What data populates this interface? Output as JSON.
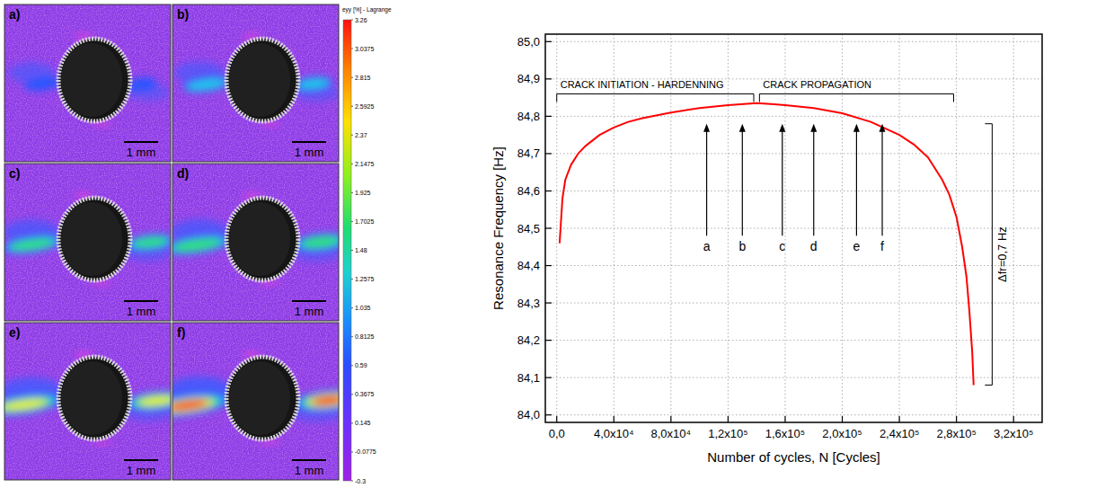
{
  "strain_maps": {
    "panels": [
      {
        "label": "a)",
        "scale_bar": "1 mm"
      },
      {
        "label": "b)",
        "scale_bar": "1 mm"
      },
      {
        "label": "c)",
        "scale_bar": "1 mm"
      },
      {
        "label": "d)",
        "scale_bar": "1 mm"
      },
      {
        "label": "e)",
        "scale_bar": "1 mm"
      },
      {
        "label": "f)",
        "scale_bar": "1 mm"
      }
    ],
    "colorbar": {
      "title": "eyy [%] - Lagrange",
      "range": [
        -0.3,
        3.26
      ],
      "ticks": [
        3.26,
        3.0375,
        2.815,
        2.5925,
        2.37,
        2.1475,
        1.925,
        1.7025,
        1.48,
        1.2575,
        1.035,
        0.8125,
        0.59,
        0.3675,
        0.145,
        -0.0775,
        -0.3
      ]
    }
  },
  "chart_data": {
    "type": "line",
    "x_label": "Number of cycles, N [Cycles]",
    "y_label": "Resonance Frequency [Hz]",
    "x": [
      2000,
      4000,
      6000,
      10000,
      15000,
      20000,
      30000,
      40000,
      50000,
      60000,
      80000,
      100000,
      120000,
      140000,
      150000,
      160000,
      180000,
      200000,
      220000,
      240000,
      250000,
      260000,
      270000,
      275000,
      280000,
      284000,
      287000,
      289000,
      291000,
      292000
    ],
    "values": [
      84.46,
      84.58,
      84.63,
      84.67,
      84.7,
      84.72,
      84.75,
      84.77,
      84.785,
      84.795,
      84.81,
      84.822,
      84.83,
      84.835,
      84.833,
      84.83,
      84.822,
      84.808,
      84.785,
      84.75,
      84.725,
      84.69,
      84.63,
      84.59,
      84.53,
      84.45,
      84.37,
      84.28,
      84.17,
      84.08
    ],
    "color": "#ff0000",
    "xlim": [
      -8000,
      340000
    ],
    "ylim": [
      83.98,
      85.02
    ],
    "xticks": [
      {
        "value": 0,
        "label": "0,0"
      },
      {
        "value": 40000,
        "label": "4,0x10⁴"
      },
      {
        "value": 80000,
        "label": "8,0x10⁴"
      },
      {
        "value": 120000,
        "label": "1,2x10⁵"
      },
      {
        "value": 160000,
        "label": "1,6x10⁵"
      },
      {
        "value": 200000,
        "label": "2,0x10⁵"
      },
      {
        "value": 240000,
        "label": "2,4x10⁵"
      },
      {
        "value": 280000,
        "label": "2,8x10⁵"
      },
      {
        "value": 320000,
        "label": "3,2x10⁵"
      }
    ],
    "yticks": [
      {
        "value": 84.0,
        "label": "84,0"
      },
      {
        "value": 84.1,
        "label": "84,1"
      },
      {
        "value": 84.2,
        "label": "84,2"
      },
      {
        "value": 84.3,
        "label": "84,3"
      },
      {
        "value": 84.4,
        "label": "84,4"
      },
      {
        "value": 84.5,
        "label": "84,5"
      },
      {
        "value": 84.6,
        "label": "84,6"
      },
      {
        "value": 84.7,
        "label": "84,7"
      },
      {
        "value": 84.8,
        "label": "84,8"
      },
      {
        "value": 84.9,
        "label": "84,9"
      },
      {
        "value": 85.0,
        "label": "85,0"
      }
    ],
    "grid": true,
    "brackets": [
      {
        "text": "CRACK INITIATION - HARDENNING",
        "x_start": 0,
        "x_end": 138000,
        "y": 84.86
      },
      {
        "text": "CRACK PROPAGATION",
        "x_start": 142000,
        "x_end": 278000,
        "y": 84.86
      }
    ],
    "arrows": [
      {
        "text": "a",
        "x": 105000,
        "y_start": 84.48,
        "y_end": 84.78
      },
      {
        "text": "b",
        "x": 130000,
        "y_start": 84.48,
        "y_end": 84.78
      },
      {
        "text": "c",
        "x": 158000,
        "y_start": 84.48,
        "y_end": 84.78
      },
      {
        "text": "d",
        "x": 180000,
        "y_start": 84.48,
        "y_end": 84.78
      },
      {
        "text": "e",
        "x": 210000,
        "y_start": 84.48,
        "y_end": 84.78
      },
      {
        "text": "f",
        "x": 228000,
        "y_start": 84.48,
        "y_end": 84.78
      }
    ],
    "range_marker": {
      "text": "Δfr=0,7 Hz",
      "x": 305000,
      "y_start": 84.78,
      "y_end": 84.08
    }
  }
}
